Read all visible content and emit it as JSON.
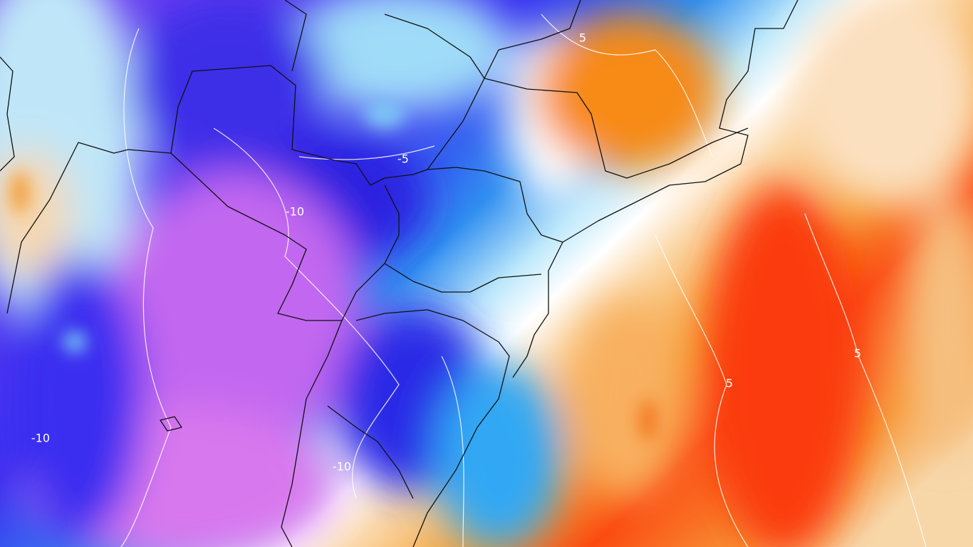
{
  "contour_labels": [
    "5",
    "-5",
    "-10",
    "-10",
    "-10",
    "5",
    "5"
  ]
}
